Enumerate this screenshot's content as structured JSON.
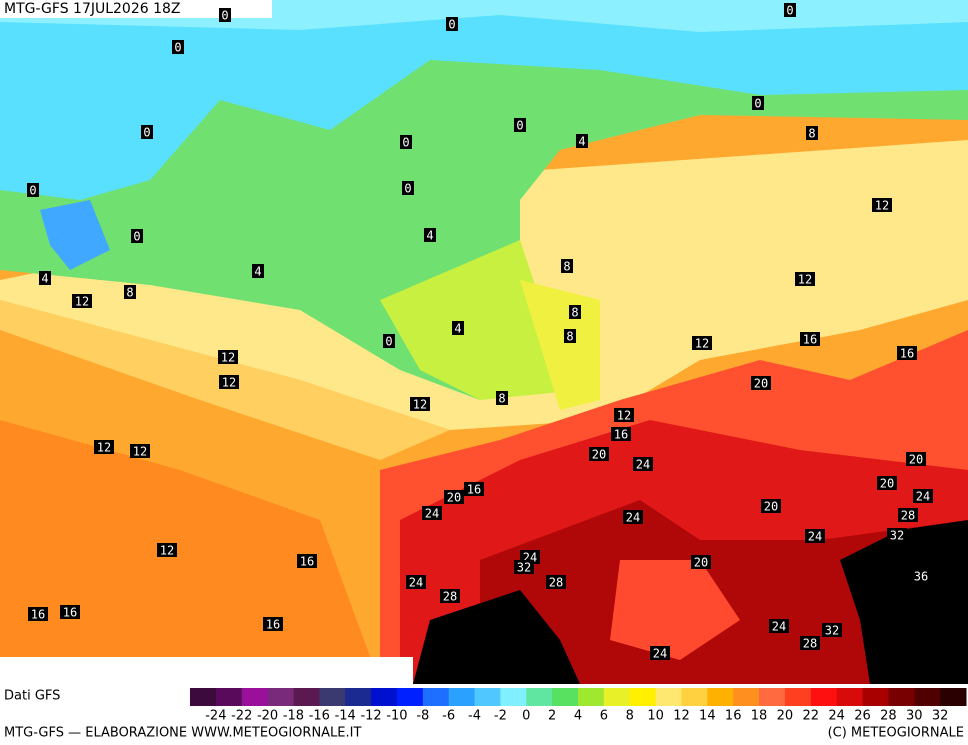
{
  "map": {
    "header": "MTG-GFS 17JUL2026 18Z",
    "contour_labels": [
      0,
      0,
      0,
      0,
      0,
      0,
      0,
      4,
      0,
      8,
      0,
      0,
      0,
      4,
      12,
      4,
      4,
      8,
      12,
      12,
      8,
      8,
      4,
      0,
      8,
      12,
      16,
      16,
      12,
      12,
      20,
      12,
      8,
      12,
      16,
      12,
      12,
      20,
      24,
      20,
      20,
      24,
      16,
      20,
      24,
      24,
      20,
      28,
      24,
      32,
      12,
      24,
      32,
      20,
      16,
      24,
      28,
      36,
      28,
      16,
      16,
      16,
      24,
      32,
      28,
      24
    ]
  },
  "legend": {
    "source": "Dati GFS",
    "values": [
      -24,
      -22,
      -20,
      -18,
      -16,
      -14,
      -12,
      -10,
      -8,
      -6,
      -4,
      -2,
      0,
      2,
      4,
      6,
      8,
      10,
      12,
      14,
      16,
      18,
      20,
      22,
      24,
      26,
      28,
      30,
      32
    ],
    "colors": [
      "#3c0a3c",
      "#5a0a5a",
      "#9a109a",
      "#7a2a7a",
      "#5a1a50",
      "#3a3a70",
      "#1a2a90",
      "#0010d0",
      "#0020ff",
      "#1e6eff",
      "#2aa0ff",
      "#50c8ff",
      "#80f0ff",
      "#60e6a0",
      "#58e060",
      "#a0e830",
      "#e8f028",
      "#fff000",
      "#ffe870",
      "#ffd040",
      "#ffb000",
      "#ff9020",
      "#ff6a40",
      "#ff4020",
      "#ff1010",
      "#d80a0a",
      "#a80000",
      "#780000",
      "#500000",
      "#2a0000"
    ]
  },
  "footer": {
    "left": "MTG-GFS — ELABORAZIONE WWW.METEOGIORNALE.IT",
    "right": "(C) METEOGIORNALE"
  }
}
